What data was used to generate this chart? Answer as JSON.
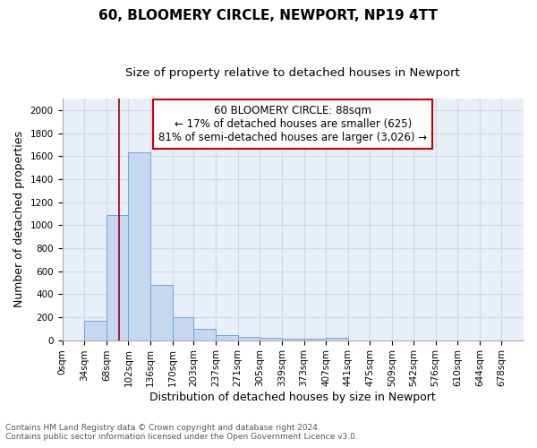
{
  "title1": "60, BLOOMERY CIRCLE, NEWPORT, NP19 4TT",
  "title2": "Size of property relative to detached houses in Newport",
  "xlabel": "Distribution of detached houses by size in Newport",
  "ylabel": "Number of detached properties",
  "footnote1": "Contains HM Land Registry data © Crown copyright and database right 2024.",
  "footnote2": "Contains public sector information licensed under the Open Government Licence v3.0.",
  "annotation_line1": "60 BLOOMERY CIRCLE: 88sqm",
  "annotation_line2": "← 17% of detached houses are smaller (625)",
  "annotation_line3": "81% of semi-detached houses are larger (3,026) →",
  "bar_color": "#c5d8f0",
  "bar_edge_color": "#6ea6d8",
  "grid_color": "#d0d8e8",
  "background_color": "#e8eff8",
  "vline_color": "#a00000",
  "annotation_box_edgecolor": "#cc0000",
  "bin_labels": [
    "0sqm",
    "34sqm",
    "68sqm",
    "102sqm",
    "136sqm",
    "170sqm",
    "203sqm",
    "237sqm",
    "271sqm",
    "305sqm",
    "339sqm",
    "373sqm",
    "407sqm",
    "441sqm",
    "475sqm",
    "509sqm",
    "542sqm",
    "576sqm",
    "610sqm",
    "644sqm",
    "678sqm"
  ],
  "bin_edges": [
    0,
    34,
    68,
    102,
    136,
    170,
    203,
    237,
    271,
    305,
    339,
    373,
    407,
    441,
    475,
    509,
    542,
    576,
    610,
    644,
    678,
    712
  ],
  "bar_heights": [
    0,
    168,
    1090,
    1630,
    480,
    200,
    100,
    40,
    25,
    20,
    15,
    15,
    20,
    0,
    0,
    0,
    0,
    0,
    0,
    0,
    0
  ],
  "vline_x": 88,
  "ylim": [
    0,
    2100
  ],
  "yticks": [
    0,
    200,
    400,
    600,
    800,
    1000,
    1200,
    1400,
    1600,
    1800,
    2000
  ],
  "title1_fontsize": 11,
  "title2_fontsize": 9.5,
  "ylabel_fontsize": 9,
  "xlabel_fontsize": 9,
  "tick_fontsize": 7.5,
  "annotation_fontsize": 8.5,
  "footnote_fontsize": 6.5
}
